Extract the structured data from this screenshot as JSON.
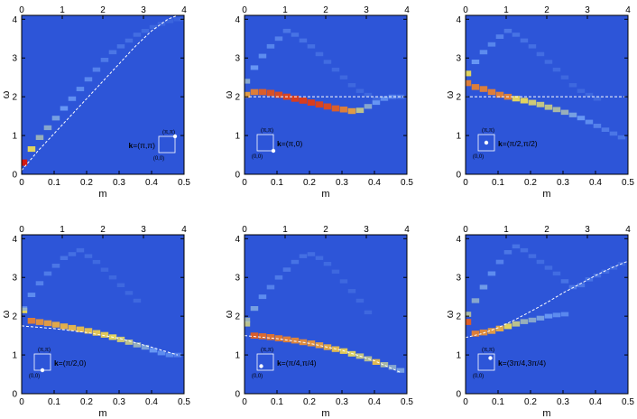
{
  "colors": {
    "background": "#2d55d8",
    "cold": "#2d55d8",
    "mid": "#7fb2ff",
    "warm": "#ffe84a",
    "hot": "#d41a10",
    "curve": "#ffffff"
  },
  "chart_data": [
    {
      "type": "heatmap",
      "xlabel": "m",
      "ylabel": "ω",
      "xlim": [
        0,
        0.5
      ],
      "ylim": [
        0,
        4.1
      ],
      "top_axis_lim": [
        0,
        4
      ],
      "x_ticks": [
        "0",
        "0.1",
        "0.2",
        "0.3",
        "0.4",
        "0.5"
      ],
      "y_ticks": [
        "0",
        "1",
        "2",
        "3",
        "4"
      ],
      "top_ticks": [
        "0",
        "1",
        "2",
        "3",
        "4"
      ],
      "k_label": "k=(π,π)",
      "k_bold": "k",
      "k_rest": "=(π,π)",
      "bz_top": "(π,π)",
      "bz_bottom": "(0,0)",
      "k_point": [
        1,
        1
      ],
      "legend_position": "bottom-right",
      "reference_curve": {
        "type": "line",
        "x": [
          0,
          0.05,
          0.1,
          0.15,
          0.2,
          0.25,
          0.3,
          0.35,
          0.4,
          0.45,
          0.48
        ],
        "y": [
          0.1,
          0.6,
          1.05,
          1.5,
          1.95,
          2.4,
          2.85,
          3.3,
          3.7,
          4.0,
          4.1
        ]
      },
      "series": [
        {
          "x": [
            0.0,
            0.025,
            0.05,
            0.075,
            0.1,
            0.125,
            0.15,
            0.175,
            0.2,
            0.225,
            0.25,
            0.275,
            0.3,
            0.325,
            0.35,
            0.375,
            0.4,
            0.425,
            0.45,
            0.475,
            0.49
          ],
          "y": [
            0.3,
            0.65,
            0.95,
            1.2,
            1.45,
            1.7,
            1.95,
            2.2,
            2.45,
            2.7,
            2.95,
            3.15,
            3.3,
            3.45,
            3.6,
            3.7,
            3.8,
            3.88,
            3.95,
            4.0,
            4.0
          ],
          "intensity": [
            1.0,
            0.7,
            0.5,
            0.45,
            0.4,
            0.35,
            0.32,
            0.3,
            0.28,
            0.25,
            0.22,
            0.2,
            0.18,
            0.16,
            0.15,
            0.13,
            0.12,
            0.11,
            0.1,
            0.09,
            0.08
          ]
        }
      ]
    },
    {
      "type": "heatmap",
      "xlabel": "m",
      "ylabel": "ω",
      "xlim": [
        0,
        0.5
      ],
      "ylim": [
        0,
        4.1
      ],
      "top_axis_lim": [
        0,
        4
      ],
      "x_ticks": [
        "0",
        "0.1",
        "0.2",
        "0.3",
        "0.4",
        "0.5"
      ],
      "y_ticks": [
        "0",
        "1",
        "2",
        "3",
        "4"
      ],
      "top_ticks": [
        "0",
        "1",
        "2",
        "3",
        "4"
      ],
      "k_label": "k=(π,0)",
      "k_bold": "k",
      "k_rest": "=(π,0)",
      "bz_top": "(π,π)",
      "bz_bottom": "(0,0)",
      "k_point": [
        1,
        0
      ],
      "legend_position": "bottom-left",
      "reference_curve": {
        "type": "line",
        "x": [
          0,
          0.5
        ],
        "y": [
          2.0,
          2.0
        ]
      },
      "series": [
        {
          "x": [
            0.0,
            0.025,
            0.05,
            0.075,
            0.1,
            0.125,
            0.15,
            0.175,
            0.2,
            0.225,
            0.25,
            0.275,
            0.3,
            0.325,
            0.35,
            0.375,
            0.4,
            0.425,
            0.45,
            0.475
          ],
          "y": [
            2.05,
            2.12,
            2.12,
            2.1,
            2.05,
            2.0,
            1.95,
            1.9,
            1.85,
            1.8,
            1.75,
            1.7,
            1.67,
            1.63,
            1.65,
            1.75,
            1.85,
            1.95,
            2.0,
            2.0
          ],
          "intensity": [
            0.8,
            0.85,
            0.9,
            0.92,
            0.93,
            0.94,
            0.95,
            0.95,
            0.95,
            0.94,
            0.93,
            0.9,
            0.85,
            0.8,
            0.6,
            0.45,
            0.35,
            0.3,
            0.25,
            0.2
          ]
        },
        {
          "x": [
            0.0,
            0.025,
            0.05,
            0.075,
            0.1,
            0.125,
            0.15,
            0.175,
            0.2,
            0.225,
            0.25,
            0.275,
            0.3,
            0.325,
            0.35,
            0.375,
            0.4
          ],
          "y": [
            2.4,
            2.75,
            3.05,
            3.3,
            3.5,
            3.7,
            3.6,
            3.45,
            3.3,
            3.1,
            2.9,
            2.7,
            2.5,
            2.3,
            2.15,
            2.05,
            1.95
          ],
          "intensity": [
            0.45,
            0.35,
            0.3,
            0.27,
            0.25,
            0.2,
            0.18,
            0.17,
            0.16,
            0.15,
            0.14,
            0.13,
            0.12,
            0.12,
            0.12,
            0.12,
            0.12
          ]
        }
      ]
    },
    {
      "type": "heatmap",
      "xlabel": "m",
      "ylabel": "ω",
      "xlim": [
        0,
        0.5
      ],
      "ylim": [
        0,
        4.1
      ],
      "top_axis_lim": [
        0,
        4
      ],
      "x_ticks": [
        "0",
        "0.1",
        "0.2",
        "0.3",
        "0.4",
        "0.5"
      ],
      "y_ticks": [
        "0",
        "1",
        "2",
        "3",
        "4"
      ],
      "top_ticks": [
        "0",
        "1",
        "2",
        "3",
        "4"
      ],
      "k_label": "k=(π/2,π/2)",
      "k_bold": "k",
      "k_rest": "=(π/2,π/2)",
      "bz_top": "(π,π)",
      "bz_bottom": "(0,0)",
      "k_point": [
        0.5,
        0.5
      ],
      "legend_position": "bottom-left",
      "reference_curve": {
        "type": "line",
        "x": [
          0,
          0.5
        ],
        "y": [
          2.0,
          2.0
        ]
      },
      "series": [
        {
          "x": [
            0.0,
            0.025,
            0.05,
            0.075,
            0.1,
            0.125,
            0.15,
            0.175,
            0.2,
            0.225,
            0.25,
            0.275,
            0.3,
            0.325,
            0.35,
            0.375,
            0.4,
            0.425,
            0.45,
            0.475
          ],
          "y": [
            2.35,
            2.25,
            2.2,
            2.12,
            2.05,
            2.0,
            1.95,
            1.9,
            1.85,
            1.8,
            1.73,
            1.67,
            1.6,
            1.53,
            1.45,
            1.35,
            1.25,
            1.15,
            1.05,
            0.95
          ],
          "intensity": [
            0.85,
            0.85,
            0.85,
            0.85,
            0.85,
            0.85,
            0.7,
            0.7,
            0.65,
            0.62,
            0.6,
            0.55,
            0.5,
            0.4,
            0.35,
            0.3,
            0.25,
            0.22,
            0.2,
            0.18
          ]
        },
        {
          "x": [
            0.0,
            0.025,
            0.05,
            0.075,
            0.1,
            0.125,
            0.15,
            0.175,
            0.2,
            0.225,
            0.25,
            0.275,
            0.3,
            0.325,
            0.35,
            0.375,
            0.4
          ],
          "y": [
            2.6,
            2.9,
            3.15,
            3.35,
            3.55,
            3.7,
            3.6,
            3.45,
            3.3,
            3.1,
            2.9,
            2.7,
            2.5,
            2.3,
            2.15,
            2.05,
            1.95
          ],
          "intensity": [
            0.7,
            0.35,
            0.3,
            0.27,
            0.25,
            0.2,
            0.18,
            0.17,
            0.16,
            0.15,
            0.14,
            0.13,
            0.12,
            0.12,
            0.12,
            0.12,
            0.12
          ]
        }
      ]
    },
    {
      "type": "heatmap",
      "xlabel": "m",
      "ylabel": "ω",
      "xlim": [
        0,
        0.5
      ],
      "ylim": [
        0,
        4.1
      ],
      "top_axis_lim": [
        0,
        4
      ],
      "x_ticks": [
        "0",
        "0.1",
        "0.2",
        "0.3",
        "0.4",
        "0.5"
      ],
      "y_ticks": [
        "0",
        "1",
        "2",
        "3",
        "4"
      ],
      "top_ticks": [
        "0",
        "1",
        "2",
        "3",
        "4"
      ],
      "k_label": "k=(π/2,0)",
      "k_bold": "k",
      "k_rest": "=(π/2,0)",
      "bz_top": "(π,π)",
      "bz_bottom": "(0,0)",
      "k_point": [
        0.5,
        0
      ],
      "legend_position": "bottom-left",
      "reference_curve": {
        "type": "line",
        "x": [
          0,
          0.1,
          0.2,
          0.3,
          0.4,
          0.48
        ],
        "y": [
          1.75,
          1.68,
          1.58,
          1.43,
          1.2,
          1.0
        ]
      },
      "series": [
        {
          "x": [
            0.0,
            0.025,
            0.05,
            0.075,
            0.1,
            0.125,
            0.15,
            0.175,
            0.2,
            0.225,
            0.25,
            0.275,
            0.3,
            0.325,
            0.35,
            0.375,
            0.4,
            0.425,
            0.45,
            0.475
          ],
          "y": [
            2.15,
            1.88,
            1.85,
            1.82,
            1.78,
            1.74,
            1.7,
            1.66,
            1.62,
            1.57,
            1.52,
            1.46,
            1.4,
            1.33,
            1.26,
            1.2,
            1.12,
            1.05,
            1.0,
            1.0
          ],
          "intensity": [
            0.7,
            0.85,
            0.82,
            0.8,
            0.78,
            0.77,
            0.76,
            0.75,
            0.74,
            0.73,
            0.72,
            0.7,
            0.65,
            0.6,
            0.5,
            0.42,
            0.35,
            0.3,
            0.27,
            0.25
          ]
        },
        {
          "x": [
            0.0,
            0.025,
            0.05,
            0.075,
            0.1,
            0.125,
            0.15,
            0.175,
            0.2,
            0.225,
            0.25,
            0.275,
            0.3,
            0.325,
            0.35
          ],
          "y": [
            2.2,
            2.55,
            2.85,
            3.1,
            3.3,
            3.5,
            3.6,
            3.7,
            3.55,
            3.4,
            3.2,
            3.0,
            2.8,
            2.6,
            2.4
          ],
          "intensity": [
            0.3,
            0.3,
            0.25,
            0.22,
            0.2,
            0.18,
            0.16,
            0.15,
            0.14,
            0.13,
            0.12,
            0.12,
            0.12,
            0.12,
            0.12
          ]
        }
      ]
    },
    {
      "type": "heatmap",
      "xlabel": "m",
      "ylabel": "ω",
      "xlim": [
        0,
        0.5
      ],
      "ylim": [
        0,
        4.1
      ],
      "top_axis_lim": [
        0,
        4
      ],
      "x_ticks": [
        "0",
        "0.1",
        "0.2",
        "0.3",
        "0.4",
        "0.5"
      ],
      "y_ticks": [
        "0",
        "1",
        "2",
        "3",
        "4"
      ],
      "top_ticks": [
        "0",
        "1",
        "2",
        "3",
        "4"
      ],
      "k_label": "k=(π/4,π/4)",
      "k_bold": "k",
      "k_rest": "=(π/4,π/4)",
      "bz_top": "(π,π)",
      "bz_bottom": "(0,0)",
      "k_point": [
        0.25,
        0.25
      ],
      "legend_position": "bottom-left",
      "reference_curve": {
        "type": "line",
        "x": [
          0,
          0.1,
          0.2,
          0.3,
          0.4,
          0.48
        ],
        "y": [
          1.5,
          1.42,
          1.3,
          1.12,
          0.85,
          0.55
        ]
      },
      "series": [
        {
          "x": [
            0.0,
            0.025,
            0.05,
            0.075,
            0.1,
            0.125,
            0.15,
            0.175,
            0.2,
            0.225,
            0.25,
            0.275,
            0.3,
            0.325,
            0.35,
            0.375,
            0.4,
            0.425,
            0.45,
            0.475
          ],
          "y": [
            1.8,
            1.5,
            1.48,
            1.46,
            1.43,
            1.4,
            1.37,
            1.33,
            1.3,
            1.25,
            1.2,
            1.15,
            1.1,
            1.03,
            0.97,
            0.9,
            0.82,
            0.75,
            0.68,
            0.6
          ],
          "intensity": [
            0.6,
            0.9,
            0.88,
            0.87,
            0.86,
            0.85,
            0.84,
            0.83,
            0.82,
            0.8,
            0.78,
            0.75,
            0.72,
            0.68,
            0.62,
            0.58,
            0.75,
            0.55,
            0.45,
            0.4
          ]
        },
        {
          "x": [
            0.0,
            0.025,
            0.05,
            0.075,
            0.1,
            0.125,
            0.15,
            0.175,
            0.2,
            0.225,
            0.25,
            0.275,
            0.3,
            0.325,
            0.35,
            0.375
          ],
          "y": [
            1.9,
            2.2,
            2.5,
            2.75,
            3.0,
            3.2,
            3.4,
            3.55,
            3.6,
            3.5,
            3.35,
            3.15,
            2.9,
            2.65,
            2.4,
            2.1
          ],
          "intensity": [
            0.5,
            0.4,
            0.3,
            0.25,
            0.22,
            0.2,
            0.18,
            0.16,
            0.15,
            0.14,
            0.13,
            0.12,
            0.12,
            0.12,
            0.12,
            0.12
          ]
        }
      ]
    },
    {
      "type": "heatmap",
      "xlabel": "m",
      "ylabel": "ω",
      "xlim": [
        0,
        0.5
      ],
      "ylim": [
        0,
        4.1
      ],
      "top_axis_lim": [
        0,
        4
      ],
      "x_ticks": [
        "0",
        "0.1",
        "0.2",
        "0.3",
        "0.4",
        "0.5"
      ],
      "y_ticks": [
        "0",
        "1",
        "2",
        "3",
        "4"
      ],
      "top_ticks": [
        "0",
        "1",
        "2",
        "3",
        "4"
      ],
      "k_label": "k=(3π/4,3π/4)",
      "k_bold": "k",
      "k_rest": "=(3π/4,3π/4)",
      "bz_top": "(π,π)",
      "bz_bottom": "(0,0)",
      "k_point": [
        0.75,
        0.75
      ],
      "legend_position": "bottom-left",
      "reference_curve": {
        "type": "line",
        "x": [
          0.0,
          0.05,
          0.1,
          0.15,
          0.2,
          0.25,
          0.3,
          0.35,
          0.4,
          0.45,
          0.5
        ],
        "y": [
          1.45,
          1.55,
          1.7,
          1.9,
          2.12,
          2.35,
          2.6,
          2.82,
          3.05,
          3.25,
          3.42
        ]
      },
      "series": [
        {
          "x": [
            0.0,
            0.025,
            0.05,
            0.075,
            0.1,
            0.125,
            0.15,
            0.175,
            0.2,
            0.225,
            0.25,
            0.275,
            0.3
          ],
          "y": [
            1.85,
            1.55,
            1.58,
            1.62,
            1.68,
            1.74,
            1.8,
            1.86,
            1.9,
            1.95,
            2.0,
            2.03,
            2.05
          ],
          "intensity": [
            0.9,
            0.85,
            0.83,
            0.8,
            0.78,
            0.7,
            0.6,
            0.5,
            0.45,
            0.4,
            0.35,
            0.3,
            0.28
          ]
        },
        {
          "x": [
            0.0,
            0.025,
            0.05,
            0.075,
            0.1,
            0.125,
            0.15,
            0.175,
            0.2,
            0.225,
            0.25,
            0.275,
            0.3,
            0.325,
            0.35,
            0.375,
            0.4,
            0.425,
            0.45,
            0.475
          ],
          "y": [
            2.05,
            2.4,
            2.75,
            3.1,
            3.4,
            3.65,
            3.8,
            3.7,
            3.55,
            3.4,
            3.25,
            3.1,
            2.9,
            2.75,
            2.8,
            2.95,
            3.05,
            3.15,
            3.25,
            3.35
          ],
          "intensity": [
            0.55,
            0.45,
            0.38,
            0.3,
            0.25,
            0.2,
            0.18,
            0.16,
            0.15,
            0.14,
            0.14,
            0.14,
            0.18,
            0.2,
            0.2,
            0.18,
            0.16,
            0.14,
            0.12,
            0.1
          ]
        }
      ]
    }
  ]
}
